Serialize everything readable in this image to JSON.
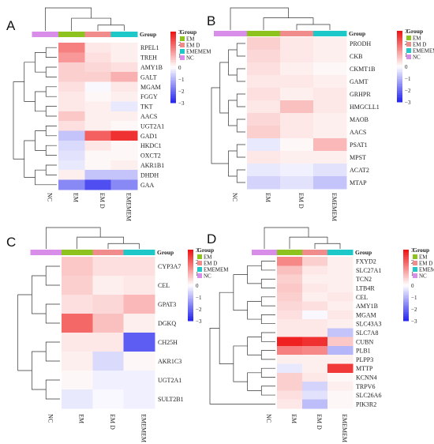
{
  "group_legend": {
    "title": "Group",
    "items": [
      {
        "label": "EM",
        "color": "#8dc21f"
      },
      {
        "label": "EM D",
        "color": "#f08c8c"
      },
      {
        "label": "EMEMEM",
        "color": "#1fc8c8"
      },
      {
        "label": "NC",
        "color": "#d88ee8"
      }
    ]
  },
  "color_scale": {
    "low": "#2222ee",
    "mid": "#ffffff",
    "high": "#ee1111",
    "range": [
      -3,
      3
    ],
    "ticks": [
      "3",
      "2",
      "1",
      "0",
      "−1",
      "−2",
      "−3"
    ]
  },
  "chart_data": [
    {
      "panel": "A",
      "type": "heatmap",
      "columns": [
        "NC",
        "EM",
        "EM D",
        "EMEMEM"
      ],
      "rows": [
        "RPEL1",
        "TREH",
        "AMY1B",
        "GALT",
        "MGAM",
        "FGGY",
        "TKT",
        "AACS",
        "UGT2A1",
        "GAD1",
        "HKDC1",
        "OXCT2",
        "AKR1B1",
        "DHDH",
        "GAA"
      ],
      "values": [
        [
          0,
          1.6,
          0.3,
          0.2
        ],
        [
          0,
          1.3,
          0.4,
          0.2
        ],
        [
          0,
          0.6,
          0.5,
          0.4
        ],
        [
          0,
          0.6,
          0.6,
          1.0
        ],
        [
          0,
          0.4,
          -0.1,
          0.3
        ],
        [
          0,
          0.3,
          0.1,
          0.2
        ],
        [
          0,
          0.3,
          0.2,
          -0.3
        ],
        [
          0,
          0.7,
          0.2,
          0.2
        ],
        [
          0,
          0.4,
          0.2,
          0.1
        ],
        [
          0,
          -0.8,
          2.0,
          2.6
        ],
        [
          0,
          -0.5,
          0.3,
          0.1
        ],
        [
          0,
          -0.4,
          0.1,
          0.1
        ],
        [
          0,
          -0.3,
          0.1,
          0.2
        ],
        [
          0,
          0.2,
          -0.8,
          -0.8
        ],
        [
          0,
          -1.6,
          -2.4,
          -1.6
        ]
      ]
    },
    {
      "panel": "B",
      "type": "heatmap",
      "columns": [
        "NC",
        "EM",
        "EM D",
        "EMEMEM"
      ],
      "rows": [
        "PRODH",
        "CKB",
        "CKMT1B",
        "GAMT",
        "GRHPR",
        "HMGCLL1",
        "MAOB",
        "AACS",
        "PSAT1",
        "MPST",
        "ACAT2",
        "MTAP"
      ],
      "values": [
        [
          0,
          0.6,
          0.3,
          0.2
        ],
        [
          0,
          0.5,
          0.3,
          0.2
        ],
        [
          0,
          0.4,
          0.2,
          0.1
        ],
        [
          0,
          0.3,
          0.3,
          0.2
        ],
        [
          0,
          0.4,
          0.2,
          0.3
        ],
        [
          0,
          0.3,
          0.8,
          0.3
        ],
        [
          0,
          0.5,
          0.3,
          0.2
        ],
        [
          0,
          0.6,
          0.3,
          0.2
        ],
        [
          0,
          -0.3,
          0.1,
          0.9
        ],
        [
          0,
          0.3,
          0.2,
          0.2
        ],
        [
          0,
          -0.3,
          -0.2,
          -0.4
        ],
        [
          0,
          -0.6,
          -0.4,
          -0.8
        ]
      ]
    },
    {
      "panel": "C",
      "type": "heatmap",
      "columns": [
        "NC",
        "EM",
        "EM D",
        "EMEMEM"
      ],
      "rows": [
        "CYP3A7",
        "CEL",
        "GPAT3",
        "DGKQ",
        "CH25H",
        "AKR1C3",
        "UGT2A1",
        "SULT2B1"
      ],
      "values": [
        [
          0,
          0.7,
          0.4,
          0.4
        ],
        [
          0,
          0.6,
          0.2,
          0.3
        ],
        [
          0,
          0.4,
          0.5,
          0.9
        ],
        [
          0,
          1.9,
          0.8,
          0.2
        ],
        [
          0,
          0.3,
          0.3,
          -2.2
        ],
        [
          0,
          0.2,
          -0.5,
          0.1
        ],
        [
          0,
          0.1,
          -0.2,
          -0.2
        ],
        [
          0,
          -0.3,
          -0.1,
          -0.2
        ]
      ]
    },
    {
      "panel": "D",
      "type": "heatmap",
      "columns": [
        "NC",
        "EM",
        "EM D",
        "EMEMEM"
      ],
      "rows": [
        "FXYD2",
        "SLC27A1",
        "TCN2",
        "LTB4R",
        "CEL",
        "AMY1B",
        "MGAM",
        "SLC43A3",
        "SLC7A8",
        "CUBN",
        "PLB1",
        "PLPP3",
        "MTTP",
        "KCNN4",
        "TRPV6",
        "SLC26A6",
        "PIK3R2"
      ],
      "values": [
        [
          0,
          1.5,
          0.6,
          0.2
        ],
        [
          0,
          0.8,
          0.3,
          0.2
        ],
        [
          0,
          0.6,
          0.2,
          0.2
        ],
        [
          0,
          0.7,
          0.3,
          0.2
        ],
        [
          0,
          0.6,
          0.2,
          0.3
        ],
        [
          0,
          0.5,
          0.4,
          0.2
        ],
        [
          0,
          0.4,
          -0.1,
          0.3
        ],
        [
          0,
          0.3,
          0.3,
          0.2
        ],
        [
          0,
          0.3,
          0.3,
          -0.8
        ],
        [
          0,
          2.8,
          2.6,
          0.7
        ],
        [
          0,
          1.6,
          1.5,
          -1.0
        ],
        [
          0,
          0.2,
          0.2,
          0.2
        ],
        [
          0,
          -0.3,
          0.2,
          2.5
        ],
        [
          0,
          0.6,
          0.3,
          0.1
        ],
        [
          0,
          0.6,
          -0.6,
          0.2
        ],
        [
          0,
          0.4,
          -0.4,
          0.1
        ],
        [
          0,
          0.3,
          -0.9,
          0.1
        ]
      ]
    }
  ]
}
